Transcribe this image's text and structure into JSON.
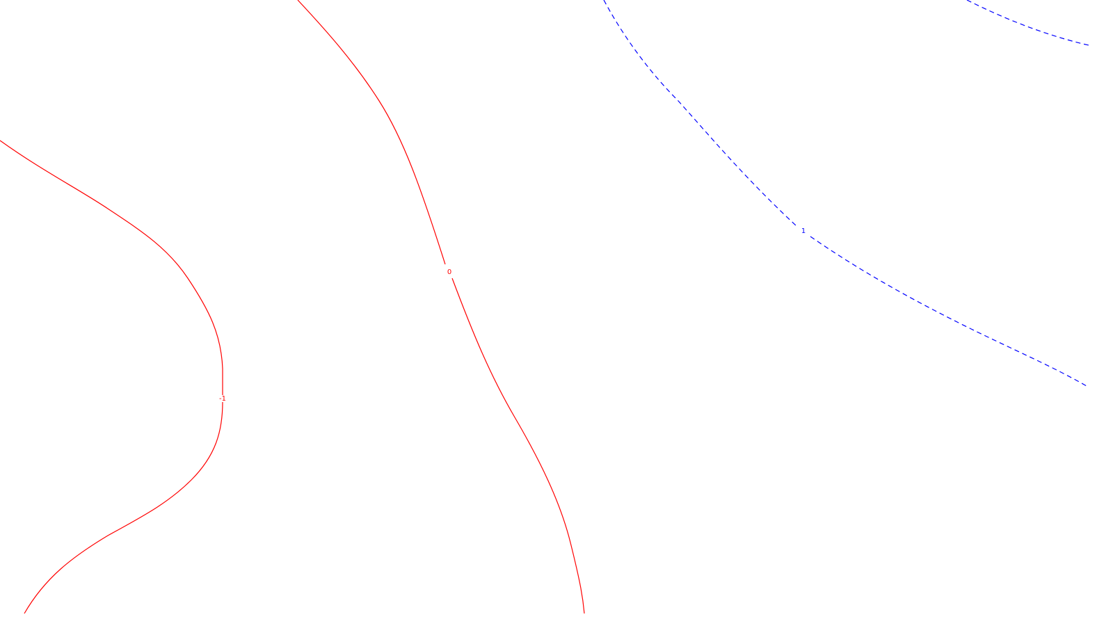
{
  "contours": {
    "neg_one": {
      "label": "-1",
      "color": "#ff0000",
      "dashed": false
    },
    "zero": {
      "label": "0",
      "color": "#ff0000",
      "dashed": false
    },
    "one": {
      "label": "1",
      "color": "#0000ff",
      "dashed": true
    }
  }
}
